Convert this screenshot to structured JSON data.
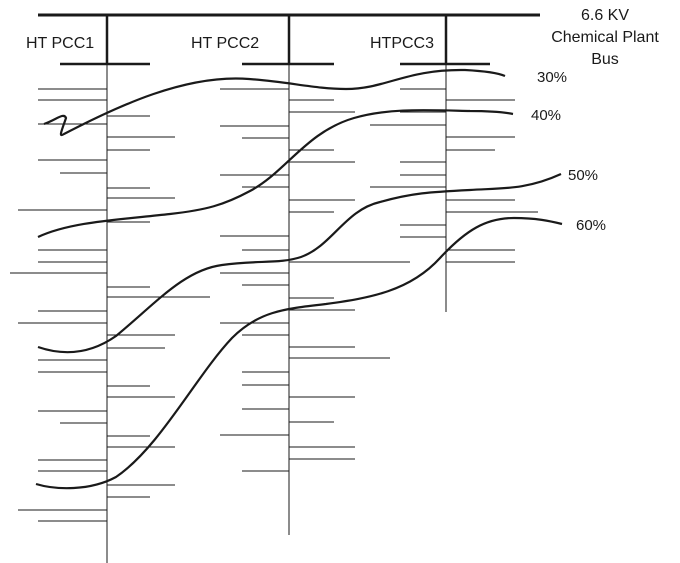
{
  "bus": {
    "label_lines": [
      "6.6 KV",
      "Chemical Plant",
      "Bus"
    ]
  },
  "panels": [
    {
      "label": "HT PCC1"
    },
    {
      "label": "HT PCC2"
    },
    {
      "label": "HTPCC3"
    }
  ],
  "curves": [
    {
      "label": "30%"
    },
    {
      "label": "40%"
    },
    {
      "label": "50%"
    },
    {
      "label": "60%"
    }
  ]
}
